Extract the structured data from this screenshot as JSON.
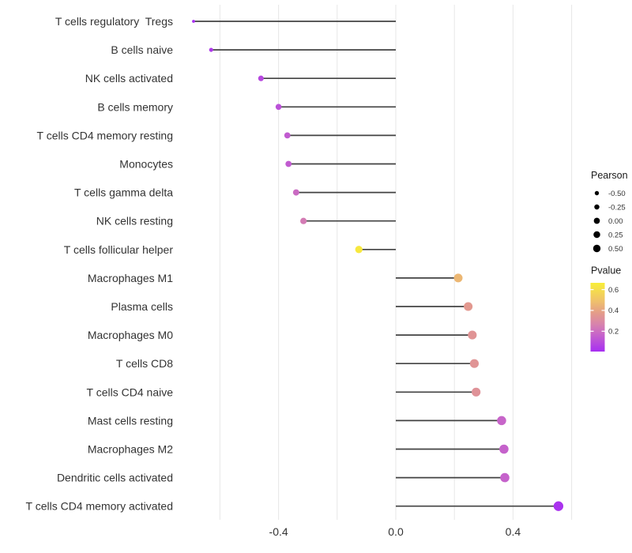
{
  "chart_data": {
    "type": "lollipop",
    "orientation": "horizontal",
    "title": "",
    "xlabel": "",
    "ylabel": "",
    "x_axis": {
      "ticks": [
        -0.4,
        0.0,
        0.4
      ],
      "tick_labels": [
        "-0.4",
        "0.0",
        "0.4"
      ],
      "gridlines": [
        -0.6,
        -0.4,
        -0.2,
        0.0,
        0.2,
        0.4,
        0.6
      ],
      "range": [
        -0.72,
        0.64
      ],
      "baseline_value": 0.0
    },
    "points": [
      {
        "label": "T cells regulatory  Tregs",
        "pearson": -0.69,
        "pvalue": 0.01
      },
      {
        "label": "B cells naive",
        "pearson": -0.63,
        "pvalue": 0.04
      },
      {
        "label": "NK cells activated",
        "pearson": -0.46,
        "pvalue": 0.08
      },
      {
        "label": "B cells memory",
        "pearson": -0.4,
        "pvalue": 0.11
      },
      {
        "label": "T cells CD4 memory resting",
        "pearson": -0.37,
        "pvalue": 0.14
      },
      {
        "label": "Monocytes",
        "pearson": -0.366,
        "pvalue": 0.14
      },
      {
        "label": "T cells gamma delta",
        "pearson": -0.34,
        "pvalue": 0.19
      },
      {
        "label": "NK cells resting",
        "pearson": -0.315,
        "pvalue": 0.24
      },
      {
        "label": "T cells follicular helper",
        "pearson": -0.126,
        "pvalue": 0.64
      },
      {
        "label": "Macrophages M1",
        "pearson": 0.213,
        "pvalue": 0.46
      },
      {
        "label": "Plasma cells",
        "pearson": 0.247,
        "pvalue": 0.36
      },
      {
        "label": "Macrophages M0",
        "pearson": 0.261,
        "pvalue": 0.34
      },
      {
        "label": "T cells CD8",
        "pearson": 0.268,
        "pvalue": 0.34
      },
      {
        "label": "T cells CD4 naive",
        "pearson": 0.274,
        "pvalue": 0.33
      },
      {
        "label": "Mast cells resting",
        "pearson": 0.361,
        "pvalue": 0.17
      },
      {
        "label": "Macrophages M2",
        "pearson": 0.369,
        "pvalue": 0.16
      },
      {
        "label": "Dendritic cells activated",
        "pearson": 0.372,
        "pvalue": 0.16
      },
      {
        "label": "T cells CD4 memory activated",
        "pearson": 0.555,
        "pvalue": 0.02
      }
    ],
    "legend": {
      "pearson": {
        "title": "Pearson",
        "breaks": [
          -0.5,
          -0.25,
          0.0,
          0.25,
          0.5
        ],
        "labels": [
          "-0.50",
          "-0.25",
          "0.00",
          "0.25",
          "0.50"
        ],
        "dot_color": "#000000"
      },
      "pvalue": {
        "title": "Pvalue",
        "ticks": [
          0.6,
          0.4,
          0.2
        ],
        "tick_labels": [
          "0.6",
          "0.4",
          "0.2"
        ],
        "domain": [
          0.005,
          0.665
        ],
        "gradient_stops": [
          {
            "t": 0.0,
            "color": "#A72EF2"
          },
          {
            "t": 0.25,
            "color": "#C765C9"
          },
          {
            "t": 0.4,
            "color": "#D884AC"
          },
          {
            "t": 0.55,
            "color": "#E39A8C"
          },
          {
            "t": 0.75,
            "color": "#F0C468"
          },
          {
            "t": 1.0,
            "color": "#F8EE38"
          }
        ]
      }
    },
    "colors": {
      "stick": "#424242",
      "gridline": "#E7E7E7",
      "axis_text": "#333333",
      "background": "#FFFFFF"
    }
  }
}
